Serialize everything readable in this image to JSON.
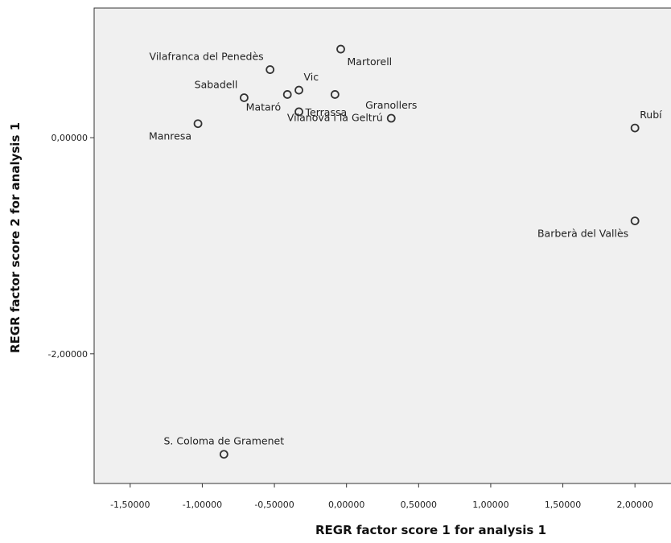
{
  "chart_data": {
    "type": "scatter",
    "title": "",
    "xlabel": "REGR factor score   1 for analysis 1",
    "ylabel": "REGR factor score   2 for analysis 1",
    "xlim": [
      -1.75,
      2.25
    ],
    "ylim": [
      -3.2,
      1.2
    ],
    "x_ticks": [
      -1.5,
      -1.0,
      -0.5,
      0.0,
      0.5,
      1.0,
      1.5,
      2.0
    ],
    "x_tick_labels": [
      "-1,50000",
      "-1,00000",
      "-0,50000",
      "0,00000",
      "0,50000",
      "1,00000",
      "1,50000",
      "2,00000"
    ],
    "y_ticks": [
      0.0,
      -2.0
    ],
    "y_tick_labels": [
      "0,00000",
      "-2,00000"
    ],
    "grid": false,
    "background_color": "#f0f0f0",
    "marker_color": "#333333",
    "points": [
      {
        "label": "Vilafranca del Penedès",
        "x": -0.53,
        "y": 0.63,
        "label_side": "upper-left"
      },
      {
        "label": "Martorell",
        "x": -0.04,
        "y": 0.82,
        "label_side": "lower-right"
      },
      {
        "label": "Vic",
        "x": -0.33,
        "y": 0.44,
        "label_side": "upper-right"
      },
      {
        "label": "Sabadell",
        "x": -0.71,
        "y": 0.37,
        "label_side": "upper-left"
      },
      {
        "label": "Mataró",
        "x": -0.41,
        "y": 0.4,
        "label_side": "lower-left"
      },
      {
        "label": "Terrassa",
        "x": -0.33,
        "y": 0.24,
        "label_side": "right"
      },
      {
        "label": "Vilanova i la Geltrú",
        "x": -0.08,
        "y": 0.4,
        "label_side": "below"
      },
      {
        "label": "Granollers",
        "x": 0.31,
        "y": 0.18,
        "label_side": "above"
      },
      {
        "label": "Manresa",
        "x": -1.03,
        "y": 0.13,
        "label_side": "lower-left"
      },
      {
        "label": "Rubí",
        "x": 2.0,
        "y": 0.09,
        "label_side": "upper-right"
      },
      {
        "label": "Barberà del Vallès",
        "x": 2.0,
        "y": -0.77,
        "label_side": "lower-left"
      },
      {
        "label": "S. Coloma de Gramenet",
        "x": -0.85,
        "y": -2.93,
        "label_side": "above"
      }
    ]
  }
}
